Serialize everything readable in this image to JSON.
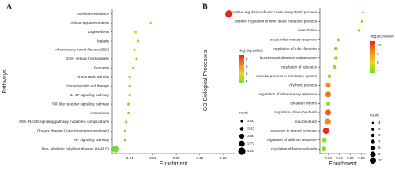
{
  "chart_data": [
    {
      "type": "scatter",
      "panel_label": "A",
      "ylabel": "Pathways",
      "xlabel": "Enrichment",
      "categories": [
        "Antifolate resistance",
        "African trypanosomiasis",
        "Legionellosis",
        "Malaria",
        "Inflammatory bowel disease (IBD)",
        "Graft- versus- host disease",
        "Pertussis",
        "Rheumatoid arthritis",
        "Hematopoietic cell lineage",
        "IL- 17 signaling pathway",
        "Toll- like receptor signaling pathway",
        "Amoebiasis",
        "AGE- RAGE signaling pathway in diabetic complications",
        "Chagas disease (American trypanosomiasis)",
        "TNF signaling pathway",
        "Non- alcoholic fatty liver disease (NAFLD)"
      ],
      "x": [
        0.125,
        0.058,
        0.045,
        0.047,
        0.044,
        0.046,
        0.043,
        0.04,
        0.04,
        0.04,
        0.039,
        0.039,
        0.037,
        0.036,
        0.036,
        0.028
      ],
      "sizes": [
        4,
        3,
        3,
        3,
        3,
        3,
        3,
        3,
        3,
        3,
        3,
        3,
        3,
        3,
        3,
        4
      ],
      "color_values": [
        7.6,
        4.8,
        4.5,
        4.4,
        4.2,
        4.2,
        4.1,
        4.0,
        4.0,
        3.9,
        3.9,
        3.9,
        3.8,
        3.8,
        3.8,
        3.8
      ],
      "xlim": [
        0.025,
        0.13
      ],
      "xticks": [
        0.04,
        0.06,
        0.08,
        {
          "value": 0.1,
          "label": "0.10"
        },
        0.12
      ],
      "color_legend": {
        "title": "-log10(pvalue)",
        "lim": [
          3.7,
          7.6
        ],
        "ticks": [
          4,
          5,
          6,
          7
        ],
        "colors": [
          "#66e02a",
          "#f2d515",
          "#f08a1c",
          "#e8231e"
        ]
      },
      "size_legend": {
        "title": "count",
        "lim": [
          3,
          4
        ],
        "ticks": [
          {
            "value": 3,
            "label": "3.00"
          },
          {
            "value": 3.25,
            "label": "3.25"
          },
          {
            "value": 3.5,
            "label": "3.50"
          },
          {
            "value": 3.75,
            "label": "3.75"
          },
          {
            "value": 4,
            "label": "4.00"
          }
        ]
      }
    },
    {
      "type": "scatter",
      "panel_label": "B",
      "ylabel": "GO Biological Processes",
      "xlabel": "Enrichment",
      "categories": [
        "positive regulation of nitric oxide biosynthetic process",
        "positive regulation of nitric oxide metabolic process",
        "vasodilation",
        "acute inflammatory response",
        "regulation of tube diameter",
        "blood vessel diameter maintenance",
        "regulation of tube size",
        "vascular process in circulatory system",
        "rhythmic process",
        "regulation of inflammatory response",
        "circadian rhythm",
        "regulation of neuron death",
        "neuron death",
        "response to steroid hormone",
        "regulation of defense response",
        "regulation of hormone levels"
      ],
      "x": [
        0.083,
        0.081,
        0.076,
        0.038,
        0.034,
        0.034,
        0.031,
        0.022,
        0.02,
        0.02,
        0.02,
        0.02,
        0.019,
        0.016,
        0.013,
        0.012
      ],
      "sizes": [
        4,
        4,
        5,
        5,
        6,
        6,
        6,
        6,
        8,
        9,
        7,
        9,
        10,
        10,
        8,
        8
      ],
      "color_values": [
        6.9,
        6.8,
        8.8,
        7.0,
        7.2,
        7.2,
        7.2,
        7.1,
        9.2,
        9.5,
        7.2,
        9.8,
        9.3,
        10.4,
        7.2,
        7.1
      ],
      "xlim": [
        0.005,
        0.088
      ],
      "xticks": [
        0.02,
        0.04,
        0.06,
        0.08
      ],
      "color_legend": {
        "title": "-log10(pvalue)",
        "lim": [
          6.8,
          10.5
        ],
        "ticks": [
          7,
          8,
          9,
          10
        ],
        "colors": [
          "#66e02a",
          "#f2d515",
          "#f08a1c",
          "#e8231e"
        ]
      },
      "size_legend": {
        "title": "count",
        "lim": [
          4,
          10
        ],
        "ticks": [
          4,
          5,
          6,
          7,
          8,
          9,
          10
        ]
      }
    }
  ]
}
